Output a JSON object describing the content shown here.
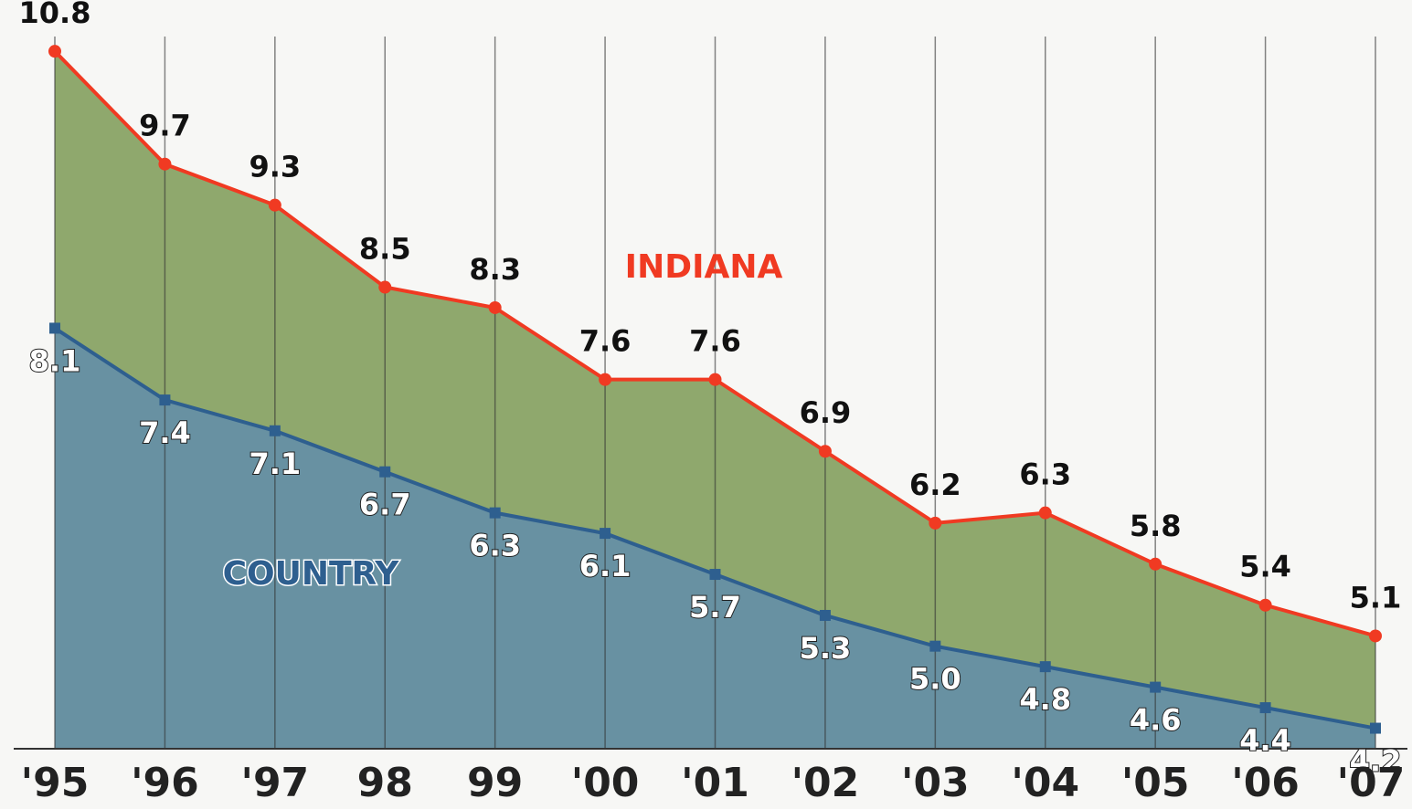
{
  "chart_data": {
    "type": "line",
    "categories": [
      "'95",
      "'96",
      "'97",
      "98",
      "99",
      "'00",
      "'01",
      "'02",
      "'03",
      "'04",
      "'05",
      "'06",
      "'07"
    ],
    "series": [
      {
        "name": "INDIANA",
        "color": "#f03a22",
        "fill": "#7d9a55",
        "values": [
          10.8,
          9.7,
          9.3,
          8.5,
          8.3,
          7.6,
          7.6,
          6.9,
          6.2,
          6.3,
          5.8,
          5.4,
          5.1
        ]
      },
      {
        "name": "COUNTRY",
        "color": "#2e5f8f",
        "fill": "#4f7f93",
        "values": [
          8.1,
          7.4,
          7.1,
          6.7,
          6.3,
          6.1,
          5.7,
          5.3,
          5.0,
          4.8,
          4.6,
          4.4,
          4.2
        ],
        "value_labels": [
          "8.1",
          "7.4",
          "7.1",
          "6.7",
          "6.3",
          "6.1",
          "5.7",
          "5.3",
          "5.0",
          "4.8",
          "4.6",
          "4.4",
          "4.2"
        ]
      }
    ],
    "ylim": [
      4.0,
      11.3
    ]
  }
}
